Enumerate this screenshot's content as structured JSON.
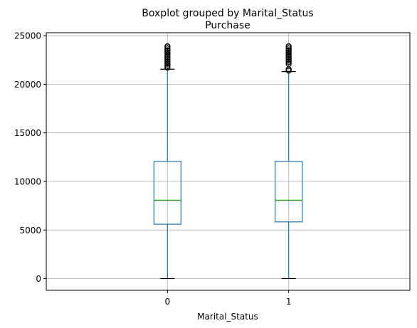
{
  "chart_data": {
    "type": "box",
    "suptitle": "Boxplot grouped by Marital_Status",
    "title": "Purchase",
    "xlabel": "Marital_Status",
    "ylabel": "",
    "categories": [
      "0",
      "1"
    ],
    "ylim": [
      -1200,
      25300
    ],
    "yticks": [
      0,
      5000,
      10000,
      15000,
      20000,
      25000
    ],
    "grid": true,
    "boxes": [
      {
        "category": "0",
        "whislo": 12,
        "q1": 5600,
        "med": 8060,
        "q3": 12060,
        "whishi": 21550,
        "fliers": [
          21700,
          21900,
          22100,
          22300,
          22500,
          22700,
          22900,
          23100,
          23300,
          23500,
          23700,
          23900
        ]
      },
      {
        "category": "1",
        "whislo": 12,
        "q1": 5840,
        "med": 8060,
        "q3": 12060,
        "whishi": 21300,
        "fliers": [
          21400,
          21550,
          22100,
          22300,
          22500,
          22700,
          22900,
          23100,
          23300,
          23500,
          23700,
          23900
        ]
      }
    ],
    "colors": {
      "box": "#1f77b4",
      "median": "#2ca02c",
      "grid": "#b0b0b0"
    }
  }
}
